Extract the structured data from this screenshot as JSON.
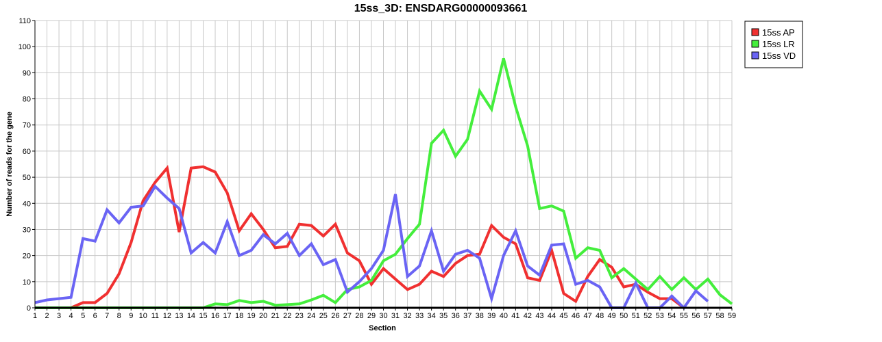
{
  "chart_data": {
    "type": "line",
    "title": "15ss_3D: ENSDARG00000093661",
    "xlabel": "Section",
    "ylabel": "Number of reads for the gene",
    "xlim": [
      1,
      59
    ],
    "ylim": [
      0,
      110
    ],
    "y_ticks": [
      0,
      10,
      20,
      30,
      40,
      50,
      60,
      70,
      80,
      90,
      100,
      110
    ],
    "x_ticks": [
      1,
      2,
      3,
      4,
      5,
      6,
      7,
      8,
      9,
      10,
      11,
      12,
      13,
      14,
      15,
      16,
      17,
      18,
      19,
      20,
      21,
      22,
      23,
      24,
      25,
      26,
      27,
      28,
      29,
      30,
      31,
      32,
      33,
      34,
      35,
      36,
      37,
      38,
      39,
      40,
      41,
      42,
      43,
      44,
      45,
      46,
      47,
      48,
      49,
      50,
      51,
      52,
      53,
      54,
      55,
      56,
      57,
      58,
      59
    ],
    "grid": true,
    "legend_position": "top-right",
    "series": [
      {
        "name": "15ss AP",
        "color": "#f03030",
        "x": [
          1,
          2,
          3,
          4,
          5,
          6,
          7,
          8,
          9,
          10,
          11,
          12,
          13,
          14,
          15,
          16,
          17,
          18,
          19,
          20,
          21,
          22,
          23,
          24,
          25,
          26,
          27,
          28,
          29,
          30,
          31,
          32,
          33,
          34,
          35,
          36,
          37,
          38,
          39,
          40,
          41,
          42,
          43,
          44,
          45,
          46,
          47,
          48,
          49,
          50,
          51,
          52,
          53,
          54,
          55
        ],
        "values": [
          0,
          0,
          0,
          0,
          2,
          2,
          5.5,
          13,
          25,
          41,
          48,
          53.5,
          29,
          53.5,
          54,
          52,
          44,
          29.5,
          36,
          30,
          23,
          23.5,
          32,
          31.5,
          27.5,
          32,
          21,
          18,
          9,
          15,
          11,
          7,
          9,
          14,
          12,
          17,
          20,
          20.5,
          31.5,
          27,
          24.5,
          11.5,
          10.5,
          22,
          5.5,
          2.5,
          12,
          18.5,
          15.5,
          8,
          9,
          6,
          3.5,
          3.5,
          0
        ]
      },
      {
        "name": "15ss LR",
        "color": "#44ee3c",
        "x": [
          1,
          2,
          3,
          4,
          5,
          6,
          7,
          8,
          9,
          10,
          11,
          12,
          13,
          14,
          15,
          16,
          17,
          18,
          19,
          20,
          21,
          22,
          23,
          24,
          25,
          26,
          27,
          28,
          29,
          30,
          31,
          32,
          33,
          34,
          35,
          36,
          37,
          38,
          39,
          40,
          41,
          42,
          43,
          44,
          45,
          46,
          47,
          48,
          49,
          50,
          51,
          52,
          53,
          54,
          55,
          56,
          57,
          58,
          59
        ],
        "values": [
          0,
          0,
          0,
          0,
          0,
          0,
          0,
          0,
          0,
          0,
          0,
          0,
          0,
          0,
          0,
          1.5,
          1.2,
          2.8,
          2,
          2.5,
          1,
          1.2,
          1.5,
          3,
          4.8,
          2,
          7,
          8,
          10.5,
          18,
          20.5,
          26.5,
          32,
          63,
          68,
          58,
          64.5,
          83,
          76,
          95.5,
          77,
          62,
          38,
          39,
          37,
          19,
          23,
          22,
          11.5,
          15,
          11,
          7,
          12,
          7,
          11.5,
          7,
          11,
          5,
          1.5
        ]
      },
      {
        "name": "15ss VD",
        "color": "#6a64f4",
        "x": [
          1,
          2,
          3,
          4,
          5,
          6,
          7,
          8,
          9,
          10,
          11,
          12,
          13,
          14,
          15,
          16,
          17,
          18,
          19,
          20,
          21,
          22,
          23,
          24,
          25,
          26,
          27,
          28,
          29,
          30,
          31,
          32,
          33,
          34,
          35,
          36,
          37,
          38,
          39,
          40,
          41,
          42,
          43,
          44,
          45,
          46,
          47,
          48,
          49,
          50,
          51,
          52,
          53,
          54,
          55,
          56,
          57
        ],
        "values": [
          2,
          3,
          3.5,
          4,
          26.5,
          25.5,
          37.5,
          32.5,
          38.5,
          39,
          46.5,
          42,
          38,
          21,
          25,
          21,
          33,
          20,
          22,
          28,
          24.5,
          28.5,
          20,
          24.5,
          16.5,
          18.5,
          6,
          10,
          15,
          22,
          43.5,
          12,
          16,
          29.5,
          14,
          20.5,
          22,
          19,
          3.5,
          20,
          29.5,
          16,
          12.5,
          24,
          24.5,
          9,
          10.5,
          8,
          0,
          0,
          9.5,
          0,
          0,
          4.5,
          0,
          6.5,
          2.5
        ]
      }
    ]
  }
}
